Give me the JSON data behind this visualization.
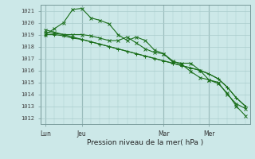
{
  "background_color": "#cce8e8",
  "grid_color": "#aacccc",
  "line_color": "#1a6e1a",
  "ylim": [
    1011.5,
    1021.5
  ],
  "xlabel": "Pression niveau de la mer( hPa )",
  "xtick_labels": [
    "Lun",
    "Jeu",
    "Mar",
    "Mer"
  ],
  "total_points": 23,
  "lun_idx": 0,
  "jeu_idx": 4,
  "mar_idx": 13,
  "mer_idx": 18,
  "s1": [
    1019.0,
    1019.5,
    1020.0,
    1021.1,
    1021.2,
    1020.4,
    1020.2,
    1019.9,
    1019.0,
    1018.5,
    1018.8,
    1018.5,
    1017.7,
    1017.4,
    1016.7,
    1016.6,
    1016.6,
    1016.0,
    1015.2,
    1014.9,
    1014.1,
    1013.0,
    1012.2
  ],
  "s2": [
    1019.4,
    1019.2,
    1019.0,
    1019.0,
    1019.0,
    1018.9,
    1018.7,
    1018.5,
    1018.5,
    1018.8,
    1018.3,
    1017.8,
    1017.5,
    1017.4,
    1016.8,
    1016.5,
    1015.9,
    1015.4,
    1015.2,
    1015.0,
    1014.0,
    1013.2,
    1012.8
  ],
  "s3": [
    1019.0,
    1019.0,
    1018.9,
    1018.7,
    1018.6,
    1018.4,
    1018.2,
    1018.0,
    1017.8,
    1017.6,
    1017.4,
    1017.2,
    1017.0,
    1016.8,
    1016.6,
    1016.4,
    1016.2,
    1016.0,
    1015.7,
    1015.3,
    1014.6,
    1013.7,
    1013.0
  ],
  "s4": [
    1019.2,
    1019.1,
    1019.0,
    1018.8,
    1018.6,
    1018.4,
    1018.2,
    1018.0,
    1017.8,
    1017.6,
    1017.4,
    1017.2,
    1017.0,
    1016.8,
    1016.6,
    1016.4,
    1016.2,
    1016.0,
    1015.7,
    1015.3,
    1014.6,
    1013.7,
    1013.0
  ]
}
